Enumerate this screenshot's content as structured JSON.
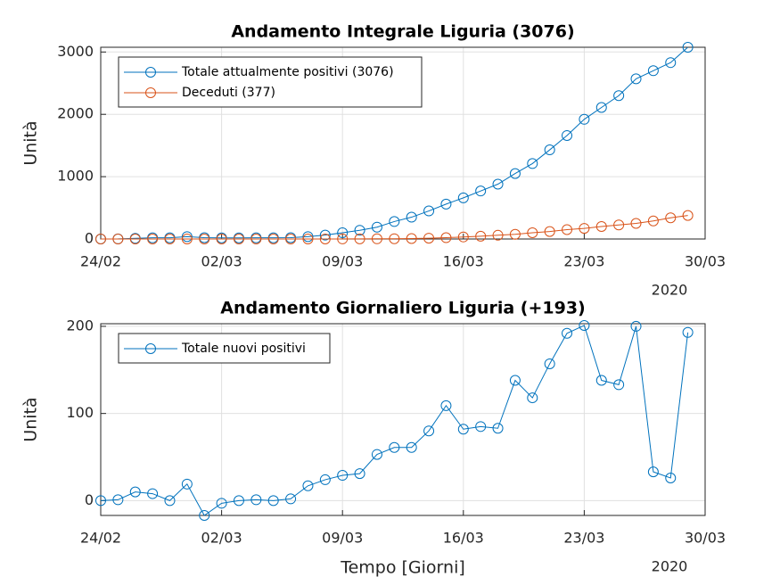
{
  "chart_data": [
    {
      "type": "line",
      "title": "Andamento Integrale Liguria (3076)",
      "ylabel": "Unità",
      "x_year_label": "2020",
      "x": [
        "2020-02-24",
        "2020-02-25",
        "2020-02-26",
        "2020-02-27",
        "2020-02-28",
        "2020-02-29",
        "2020-03-01",
        "2020-03-02",
        "2020-03-03",
        "2020-03-04",
        "2020-03-05",
        "2020-03-06",
        "2020-03-07",
        "2020-03-08",
        "2020-03-09",
        "2020-03-10",
        "2020-03-11",
        "2020-03-12",
        "2020-03-13",
        "2020-03-14",
        "2020-03-15",
        "2020-03-16",
        "2020-03-17",
        "2020-03-18",
        "2020-03-19",
        "2020-03-20",
        "2020-03-21",
        "2020-03-22",
        "2020-03-23",
        "2020-03-24",
        "2020-03-25",
        "2020-03-26",
        "2020-03-27",
        "2020-03-28",
        "2020-03-29"
      ],
      "series": [
        {
          "name": "Totale attualmente positivi (3076)",
          "color": "#0072bd",
          "values": [
            0,
            1,
            11,
            19,
            19,
            38,
            21,
            18,
            18,
            19,
            19,
            21,
            38,
            62,
            100,
            140,
            190,
            280,
            350,
            450,
            560,
            660,
            770,
            880,
            1050,
            1210,
            1430,
            1660,
            1920,
            2110,
            2300,
            2570,
            2700,
            2830,
            3076
          ]
        },
        {
          "name": "Deceduti (377)",
          "color": "#d95319",
          "values": [
            0,
            0,
            0,
            0,
            0,
            0,
            0,
            0,
            0,
            0,
            0,
            0,
            0,
            0,
            1,
            2,
            3,
            4,
            7,
            13,
            21,
            33,
            45,
            60,
            75,
            100,
            120,
            150,
            170,
            200,
            225,
            250,
            290,
            340,
            377
          ]
        }
      ],
      "xlim": [
        "2020-02-24",
        "2020-03-30"
      ],
      "xticks": [
        {
          "value": "2020-02-24",
          "label": "24/02"
        },
        {
          "value": "2020-03-02",
          "label": "02/03"
        },
        {
          "value": "2020-03-09",
          "label": "09/03"
        },
        {
          "value": "2020-03-16",
          "label": "16/03"
        },
        {
          "value": "2020-03-23",
          "label": "23/03"
        },
        {
          "value": "2020-03-30",
          "label": "30/03"
        }
      ],
      "ylim": [
        0,
        3076
      ],
      "yticks": [
        0,
        1000,
        2000,
        3000
      ],
      "grid": true,
      "legend": "northwest"
    },
    {
      "type": "line",
      "title": "Andamento Giornaliero Liguria (+193)",
      "ylabel": "Unità",
      "xlabel": "Tempo [Giorni]",
      "x_year_label": "2020",
      "x": [
        "2020-02-24",
        "2020-02-25",
        "2020-02-26",
        "2020-02-27",
        "2020-02-28",
        "2020-02-29",
        "2020-03-01",
        "2020-03-02",
        "2020-03-03",
        "2020-03-04",
        "2020-03-05",
        "2020-03-06",
        "2020-03-07",
        "2020-03-08",
        "2020-03-09",
        "2020-03-10",
        "2020-03-11",
        "2020-03-12",
        "2020-03-13",
        "2020-03-14",
        "2020-03-15",
        "2020-03-16",
        "2020-03-17",
        "2020-03-18",
        "2020-03-19",
        "2020-03-20",
        "2020-03-21",
        "2020-03-22",
        "2020-03-23",
        "2020-03-24",
        "2020-03-25",
        "2020-03-26",
        "2020-03-27",
        "2020-03-28",
        "2020-03-29"
      ],
      "series": [
        {
          "name": "Totale nuovi positivi",
          "color": "#0072bd",
          "values": [
            0,
            1,
            10,
            8,
            0,
            19,
            -17,
            -3,
            0,
            1,
            0,
            2,
            17,
            24,
            29,
            31,
            53,
            61,
            61,
            80,
            109,
            82,
            85,
            83,
            138,
            118,
            157,
            192,
            201,
            138,
            133,
            200,
            33,
            26,
            193
          ]
        }
      ],
      "xlim": [
        "2020-02-24",
        "2020-03-30"
      ],
      "xticks": [
        {
          "value": "2020-02-24",
          "label": "24/02"
        },
        {
          "value": "2020-03-02",
          "label": "02/03"
        },
        {
          "value": "2020-03-09",
          "label": "09/03"
        },
        {
          "value": "2020-03-16",
          "label": "16/03"
        },
        {
          "value": "2020-03-23",
          "label": "23/03"
        },
        {
          "value": "2020-03-30",
          "label": "30/03"
        }
      ],
      "ylim": [
        -17,
        203
      ],
      "yticks": [
        0,
        100,
        200
      ],
      "grid": true,
      "legend": "northwest"
    }
  ]
}
